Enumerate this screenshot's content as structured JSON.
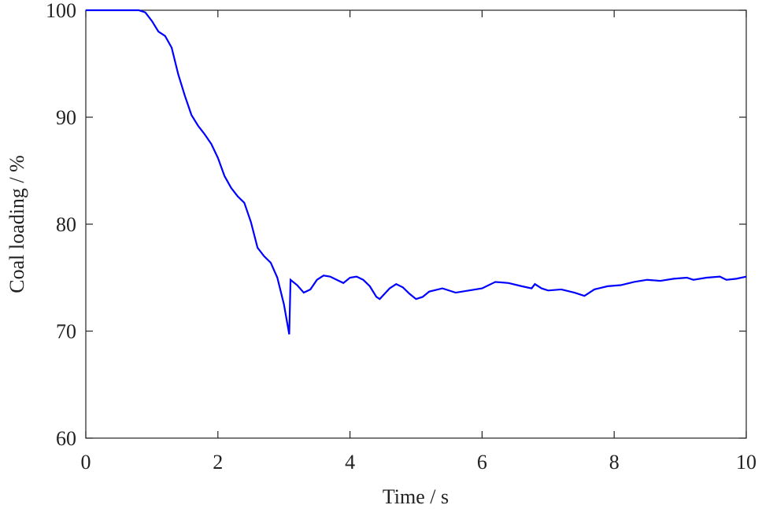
{
  "chart_data": {
    "type": "line",
    "xlabel": "Time / s",
    "ylabel": "Coal loading / %",
    "x": [
      0,
      0.8,
      0.9,
      1.0,
      1.1,
      1.2,
      1.3,
      1.4,
      1.5,
      1.6,
      1.7,
      1.8,
      1.9,
      2.0,
      2.1,
      2.2,
      2.3,
      2.4,
      2.5,
      2.6,
      2.7,
      2.8,
      2.9,
      3.0,
      3.08,
      3.1,
      3.2,
      3.3,
      3.4,
      3.5,
      3.6,
      3.7,
      3.8,
      3.9,
      4.0,
      4.1,
      4.2,
      4.3,
      4.4,
      4.45,
      4.6,
      4.7,
      4.8,
      4.9,
      5.0,
      5.1,
      5.2,
      5.4,
      5.6,
      5.8,
      6.0,
      6.2,
      6.4,
      6.6,
      6.75,
      6.8,
      6.9,
      7.0,
      7.2,
      7.4,
      7.55,
      7.7,
      7.9,
      8.1,
      8.3,
      8.5,
      8.7,
      8.9,
      9.1,
      9.2,
      9.4,
      9.6,
      9.7,
      9.85,
      10
    ],
    "series": [
      {
        "color": "#0000ff",
        "values": [
          100,
          100,
          99.8,
          99,
          98,
          97.6,
          96.5,
          94,
          92,
          90.2,
          89.2,
          88.4,
          87.5,
          86.2,
          84.5,
          83.4,
          82.6,
          82,
          80.2,
          77.8,
          77,
          76.4,
          75,
          72.5,
          69.7,
          74.8,
          74.3,
          73.6,
          73.9,
          74.8,
          75.2,
          75.1,
          74.8,
          74.5,
          75,
          75.1,
          74.8,
          74.2,
          73.2,
          73,
          74,
          74.4,
          74.1,
          73.5,
          73,
          73.2,
          73.7,
          74,
          73.6,
          73.8,
          74,
          74.6,
          74.5,
          74.2,
          74,
          74.4,
          74,
          73.8,
          73.9,
          73.6,
          73.3,
          73.9,
          74.2,
          74.3,
          74.6,
          74.8,
          74.7,
          74.9,
          75,
          74.8,
          75,
          75.1,
          74.8,
          74.9,
          75.1
        ]
      }
    ],
    "xlim": [
      0,
      10
    ],
    "xticks": [
      0,
      2,
      4,
      6,
      8,
      10
    ],
    "ylim": [
      60,
      100
    ],
    "yticks": [
      60,
      70,
      80,
      90,
      100
    ]
  }
}
